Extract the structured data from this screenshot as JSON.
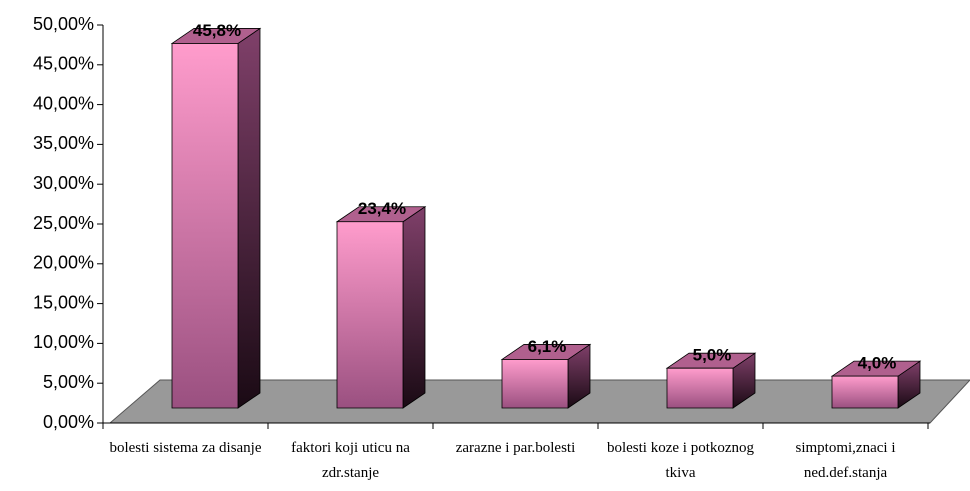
{
  "chart_data": {
    "type": "bar3d",
    "categories": [
      "bolesti sistema za disanje",
      "faktori koji uticu na zdr.stanje",
      "zarazne i par.bolesti",
      "bolesti koze i potkoznog tkiva",
      "simptomi,znaci i ned.def.stanja"
    ],
    "values": [
      45.8,
      23.4,
      6.1,
      5.0,
      4.0
    ],
    "value_labels": [
      "45,8%",
      "23,4%",
      "6,1%",
      "5,0%",
      "4,0%"
    ],
    "color": "#ff9ccc",
    "ylim": [
      0,
      50
    ],
    "yticks": [
      {
        "value": 0,
        "label": "0,00%"
      },
      {
        "value": 5,
        "label": "5,00%"
      },
      {
        "value": 10,
        "label": "10,00%"
      },
      {
        "value": 15,
        "label": "15,00%"
      },
      {
        "value": 20,
        "label": "20,00%"
      },
      {
        "value": 25,
        "label": "25,00%"
      },
      {
        "value": 30,
        "label": "30,00%"
      },
      {
        "value": 35,
        "label": "35,00%"
      },
      {
        "value": 40,
        "label": "40,00%"
      },
      {
        "value": 45,
        "label": "45,00%"
      },
      {
        "value": 50,
        "label": "50,00%"
      }
    ],
    "grid": false
  }
}
